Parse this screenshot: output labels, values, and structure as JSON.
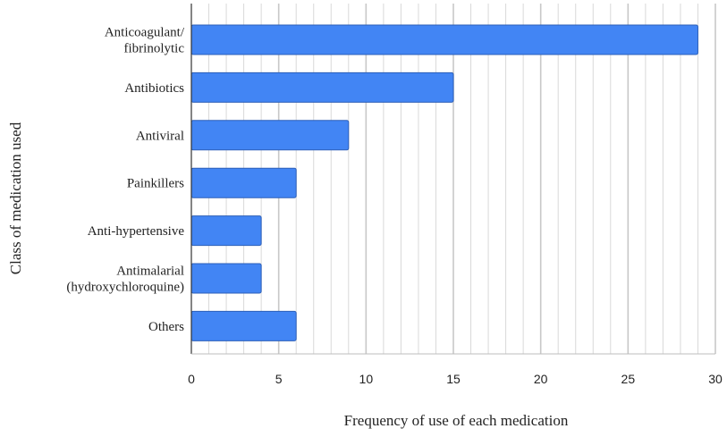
{
  "chart_data": {
    "type": "bar",
    "orientation": "horizontal",
    "categories": [
      [
        "Anticoagulant/",
        "fibrinolytic"
      ],
      [
        "Antibiotics"
      ],
      [
        "Antiviral"
      ],
      [
        "Painkillers"
      ],
      [
        "Anti-hypertensive"
      ],
      [
        "Antimalarial",
        "(hydroxychloroquine)"
      ],
      [
        "Others"
      ]
    ],
    "values": [
      29,
      15,
      9,
      6,
      4,
      4,
      6
    ],
    "xlabel": "Frequency of use of each medication",
    "ylabel": "Class of medication used",
    "xlim": [
      0,
      30
    ],
    "xticks": [
      0,
      5,
      10,
      15,
      20,
      25,
      30
    ],
    "minor_grid_step": 1,
    "grid": true,
    "bar_color": "#4285f4",
    "bar_edge_color": "#2c5fb8",
    "grid_color": "#d9d9d9"
  }
}
